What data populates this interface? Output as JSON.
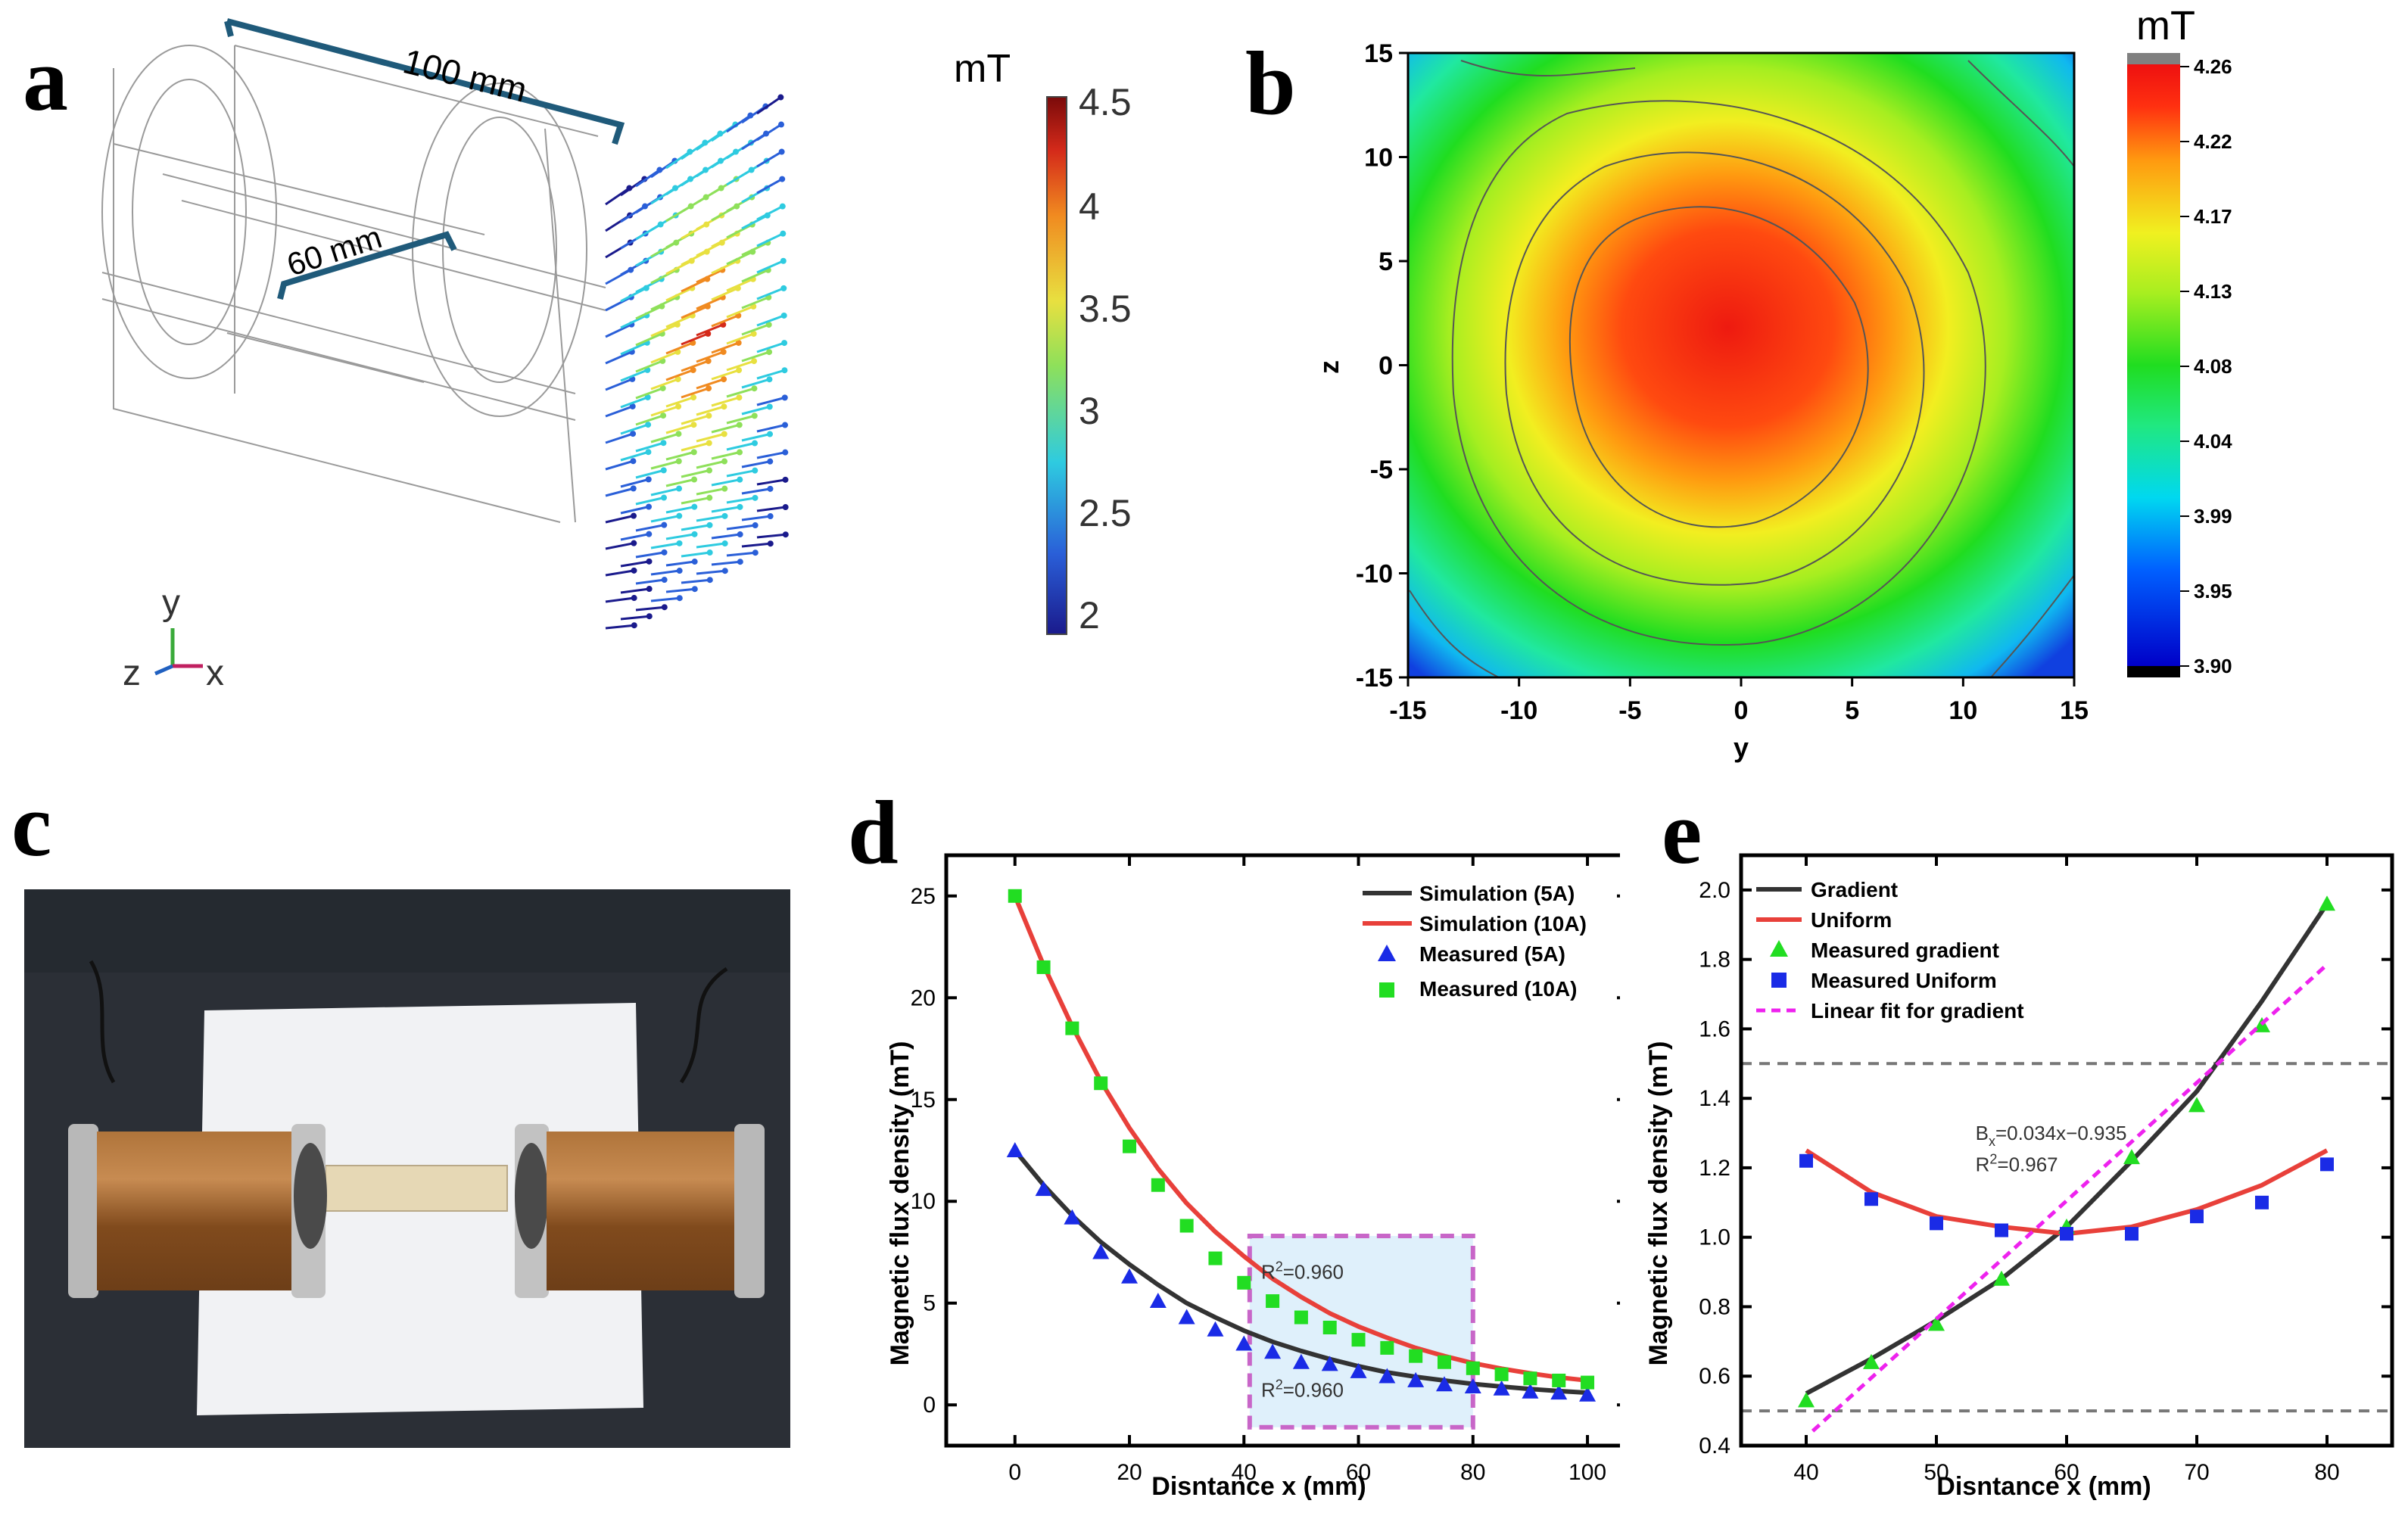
{
  "panels": {
    "a": {
      "letter": "a",
      "dim_length": "100 mm",
      "dim_diameter": "60 mm",
      "cbar_unit": "mT",
      "cbar_ticks": [
        "4.5",
        "4",
        "3.5",
        "3",
        "2.5",
        "2"
      ],
      "axis_y": "y",
      "axis_z": "z",
      "axis_x": "x"
    },
    "b": {
      "letter": "b"
    },
    "c": {
      "letter": "c"
    },
    "d": {
      "letter": "d"
    },
    "e": {
      "letter": "e"
    }
  },
  "colors": {
    "dim_line": "#1f5a7a",
    "sim_5A": "#333333",
    "sim_10A": "#e8403a",
    "meas_5A": "#1a2be6",
    "meas_10A": "#22dd22",
    "box_fill": "#dff0fb",
    "box_stroke": "#c866c8",
    "linear_fit": "#ee22ee",
    "dashed": "#777777"
  },
  "chart_data": [
    {
      "id": "b",
      "type": "heatmap",
      "title": "",
      "xlabel": "y",
      "ylabel": "z",
      "xlim": [
        -15,
        15
      ],
      "ylim": [
        -15,
        15
      ],
      "xticks": [
        "-15",
        "-10",
        "-5",
        "0",
        "5",
        "10",
        "15"
      ],
      "yticks": [
        "15",
        "10",
        "5",
        "0",
        "-5",
        "-10",
        "-15"
      ],
      "colorbar_unit": "mT",
      "colorbar_ticks": [
        "4.26",
        "4.22",
        "4.17",
        "4.13",
        "4.08",
        "4.04",
        "3.99",
        "3.95",
        "3.90"
      ],
      "zlim": [
        3.9,
        4.26
      ],
      "center": [
        0,
        1
      ],
      "peak": 4.26
    },
    {
      "id": "d",
      "type": "line",
      "xlabel": "Disntance x (mm)",
      "ylabel": "Magnetic flux density (mT)",
      "xlim": [
        -12,
        107
      ],
      "ylim": [
        -2,
        27
      ],
      "xticks": [
        0,
        20,
        40,
        60,
        80,
        100
      ],
      "yticks": [
        0,
        5,
        10,
        15,
        20,
        25
      ],
      "x": [
        0,
        5,
        10,
        15,
        20,
        25,
        30,
        35,
        40,
        45,
        50,
        55,
        60,
        65,
        70,
        75,
        80,
        85,
        90,
        95,
        100
      ],
      "series": [
        {
          "name": "Simulation (5A)",
          "kind": "line",
          "values": [
            12.5,
            10.8,
            9.3,
            8.0,
            6.9,
            5.9,
            5.0,
            4.3,
            3.65,
            3.1,
            2.65,
            2.25,
            1.9,
            1.6,
            1.38,
            1.2,
            1.03,
            0.9,
            0.78,
            0.68,
            0.6
          ]
        },
        {
          "name": "Simulation (10A)",
          "kind": "line",
          "values": [
            25.0,
            21.6,
            18.6,
            15.9,
            13.6,
            11.6,
            9.9,
            8.5,
            7.3,
            6.2,
            5.3,
            4.5,
            3.85,
            3.3,
            2.8,
            2.4,
            2.05,
            1.78,
            1.55,
            1.35,
            1.2
          ]
        },
        {
          "name": "Measured (5A)",
          "kind": "marker",
          "marker": "triangle",
          "values": [
            12.5,
            10.6,
            9.2,
            7.5,
            6.3,
            5.1,
            4.3,
            3.7,
            3.0,
            2.6,
            2.1,
            2.0,
            1.65,
            1.4,
            1.2,
            1.0,
            0.9,
            0.8,
            0.65,
            0.6,
            0.5
          ]
        },
        {
          "name": "Measured (10A)",
          "kind": "marker",
          "marker": "square",
          "values": [
            25.0,
            21.5,
            18.5,
            15.8,
            12.7,
            10.8,
            8.8,
            7.2,
            6.0,
            5.1,
            4.3,
            3.8,
            3.2,
            2.8,
            2.4,
            2.1,
            1.8,
            1.5,
            1.3,
            1.2,
            1.1
          ]
        }
      ],
      "highlight_box": {
        "x": [
          41,
          80
        ],
        "y": [
          -1.1,
          8.3
        ]
      },
      "annotations": [
        {
          "text": "=0.960",
          "x": 43,
          "y": 6.2
        },
        {
          "text": "=0.960",
          "x": 43,
          "y": 0.4
        }
      ],
      "legend": "top-right"
    },
    {
      "id": "e",
      "type": "line",
      "xlabel": "Disntance x (mm)",
      "ylabel": "Magnetic flux density (mT)",
      "xlim": [
        35,
        85
      ],
      "ylim": [
        0.4,
        2.1
      ],
      "xticks": [
        40,
        50,
        60,
        70,
        80
      ],
      "yticks": [
        0.4,
        0.6,
        0.8,
        1.0,
        1.2,
        1.4,
        1.6,
        1.8,
        2.0
      ],
      "x": [
        40,
        45,
        50,
        55,
        60,
        65,
        70,
        75,
        80
      ],
      "series": [
        {
          "name": "Gradient",
          "kind": "line",
          "values": [
            0.55,
            0.65,
            0.76,
            0.88,
            1.03,
            1.22,
            1.42,
            1.68,
            1.96
          ]
        },
        {
          "name": "Uniform",
          "kind": "line",
          "values": [
            1.25,
            1.13,
            1.06,
            1.03,
            1.01,
            1.03,
            1.08,
            1.15,
            1.25
          ]
        },
        {
          "name": "Measured gradient",
          "kind": "marker",
          "marker": "triangle",
          "values": [
            0.53,
            0.64,
            0.75,
            0.88,
            1.03,
            1.23,
            1.38,
            1.61,
            1.96
          ]
        },
        {
          "name": "Measured Uniform",
          "kind": "marker",
          "marker": "square",
          "values": [
            1.22,
            1.11,
            1.04,
            1.02,
            1.01,
            1.01,
            1.06,
            1.1,
            1.21
          ]
        },
        {
          "name": "Linear fit for gradient",
          "kind": "dashed",
          "slope": 0.034,
          "intercept": -0.935,
          "x_range": [
            40.5,
            80
          ]
        }
      ],
      "hlines": [
        0.5,
        1.5
      ],
      "annotations": [
        {
          "text": "=0.034x−0.935",
          "x": 53,
          "y": 1.28
        },
        {
          "text": "=0.967",
          "x": 53,
          "y": 1.19
        }
      ],
      "legend": "top-left"
    }
  ]
}
